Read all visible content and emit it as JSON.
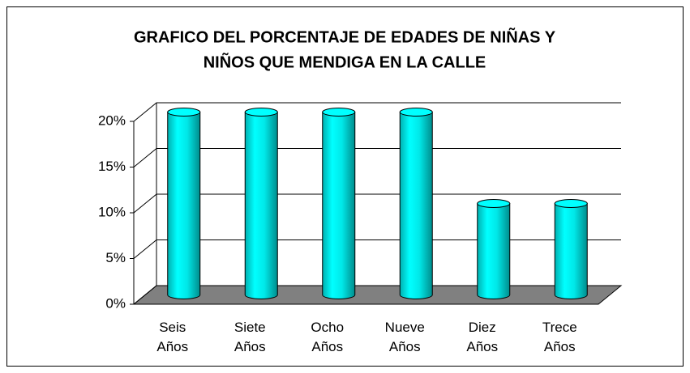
{
  "chart_data": {
    "type": "bar3d",
    "title": [
      "GRAFICO DEL PORCENTAJE DE EDADES DE NIÑAS Y",
      "NIÑOS QUE MENDIGA EN LA CALLE"
    ],
    "categories": [
      "Seis Años",
      "Siete Años",
      "Ocho Años",
      "Nueve Años",
      "Diez Años",
      "Trece Años"
    ],
    "values": [
      20,
      20,
      20,
      20,
      10,
      10
    ],
    "color": "#00ffff",
    "floor_color": "#808080",
    "ylim": [
      0,
      20
    ],
    "yticks": [
      {
        "value": 0,
        "label": "0%"
      },
      {
        "value": 5,
        "label": "5%"
      },
      {
        "value": 10,
        "label": "10%"
      },
      {
        "value": 15,
        "label": "15%"
      },
      {
        "value": 20,
        "label": "20%"
      }
    ],
    "grid": true
  }
}
